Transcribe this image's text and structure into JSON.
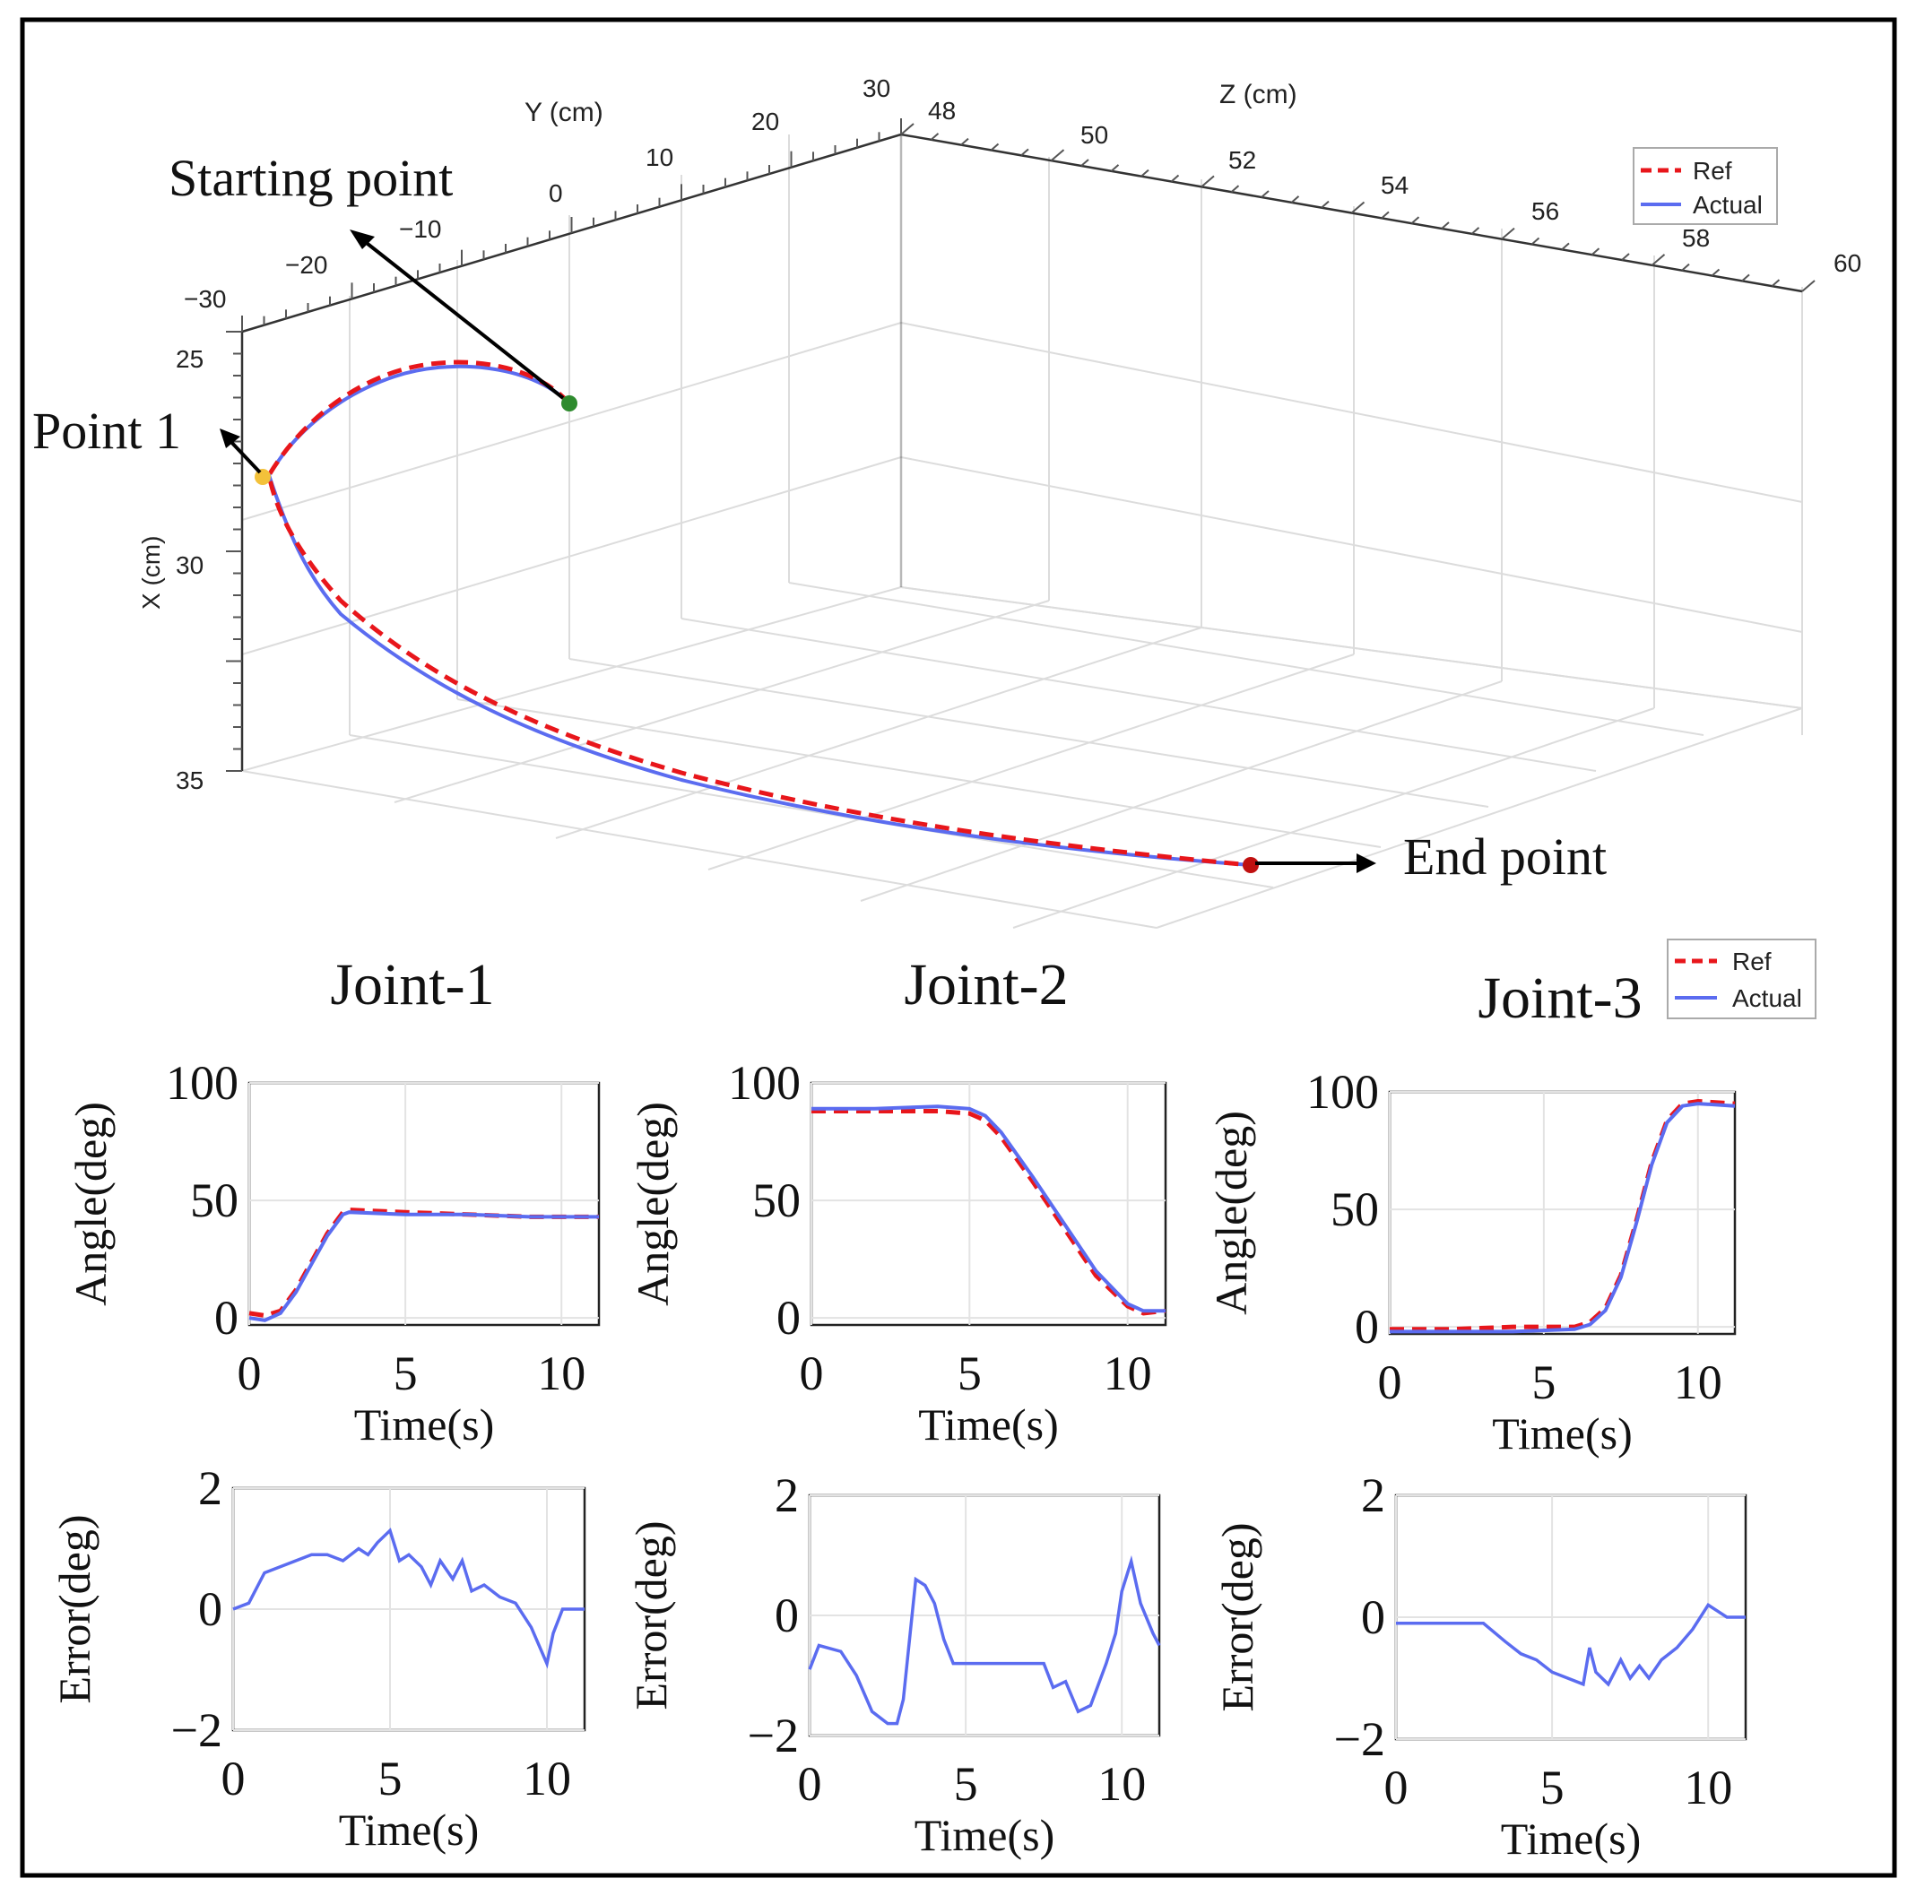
{
  "colors": {
    "ref": "#e8161b",
    "actual": "#5b6cf0",
    "start_marker": "#2e8b2e",
    "point1_marker": "#f3c13a",
    "end_marker": "#c01010"
  },
  "top_plot": {
    "y_axis": {
      "label": "Y (cm)",
      "ticks": [
        "−30",
        "−20",
        "−10",
        "0",
        "10",
        "20",
        "30"
      ]
    },
    "z_axis": {
      "label": "Z (cm)",
      "ticks": [
        "48",
        "50",
        "52",
        "54",
        "56",
        "58",
        "60"
      ]
    },
    "x_axis": {
      "label": "X (cm)",
      "ticks": [
        "25",
        "30",
        "35"
      ]
    },
    "legend": {
      "ref": "Ref",
      "actual": "Actual"
    },
    "annotations": {
      "start": "Starting point",
      "point1": "Point 1",
      "end": "End point"
    }
  },
  "legend2": {
    "ref": "Ref",
    "actual": "Actual"
  },
  "chart_data": [
    {
      "type": "line",
      "title": "Joint-1",
      "xlabel": "Time(s)",
      "ylabel": "Angle(deg)",
      "xlim": [
        0,
        11.2
      ],
      "ylim": [
        -3,
        100
      ],
      "xticks": [
        "0",
        "5",
        "10"
      ],
      "yticks": [
        "0",
        "50",
        "100"
      ],
      "series": [
        {
          "name": "Ref",
          "x": [
            0,
            0.5,
            1,
            1.5,
            2,
            2.5,
            3,
            3.2,
            5,
            7,
            9,
            11.2
          ],
          "y": [
            2,
            1,
            3,
            12,
            24,
            36,
            45,
            46,
            45,
            44,
            43,
            43
          ]
        },
        {
          "name": "Actual",
          "x": [
            0,
            0.5,
            1,
            1.5,
            2,
            2.5,
            3,
            3.2,
            5,
            7,
            9,
            11.2
          ],
          "y": [
            0,
            -1,
            2,
            11,
            23,
            35,
            44,
            45,
            44,
            44,
            43,
            43
          ]
        }
      ]
    },
    {
      "type": "line",
      "title": "Joint-2",
      "xlabel": "Time(s)",
      "ylabel": "Angle(deg)",
      "xlim": [
        0,
        11.2
      ],
      "ylim": [
        -3,
        100
      ],
      "xticks": [
        "0",
        "5",
        "10"
      ],
      "yticks": [
        "0",
        "50",
        "100"
      ],
      "series": [
        {
          "name": "Ref",
          "x": [
            0,
            2,
            4,
            5,
            5.5,
            6,
            7,
            8,
            9,
            10,
            10.5,
            11.2
          ],
          "y": [
            88,
            88,
            88,
            87,
            84,
            77,
            58,
            38,
            18,
            5,
            2,
            3
          ]
        },
        {
          "name": "Actual",
          "x": [
            0,
            2,
            4,
            5,
            5.5,
            6,
            7,
            8,
            9,
            10,
            10.5,
            11.2
          ],
          "y": [
            89,
            89,
            90,
            89,
            86,
            79,
            60,
            40,
            20,
            6,
            3,
            3
          ]
        }
      ]
    },
    {
      "type": "line",
      "title": "Joint-3",
      "xlabel": "Time(s)",
      "ylabel": "Angle(deg)",
      "xlim": [
        0,
        11.2
      ],
      "ylim": [
        -3,
        100
      ],
      "xticks": [
        "0",
        "5",
        "10"
      ],
      "yticks": [
        "0",
        "50",
        "100"
      ],
      "series": [
        {
          "name": "Ref",
          "x": [
            0,
            2,
            4,
            6,
            6.5,
            7,
            7.5,
            8,
            8.5,
            9,
            9.5,
            10,
            11.2
          ],
          "y": [
            -1,
            -1,
            0,
            0,
            2,
            8,
            22,
            45,
            70,
            88,
            95,
            96,
            95
          ]
        },
        {
          "name": "Actual",
          "x": [
            0,
            2,
            4,
            6,
            6.5,
            7,
            7.5,
            8,
            8.5,
            9,
            9.5,
            10,
            11.2
          ],
          "y": [
            -2,
            -2,
            -2,
            -1,
            1,
            7,
            21,
            44,
            69,
            87,
            94,
            95,
            94
          ]
        }
      ]
    },
    {
      "type": "line",
      "title": "",
      "xlabel": "Time(s)",
      "ylabel": "Error(deg)",
      "xlim": [
        0,
        11.2
      ],
      "ylim": [
        -2,
        2
      ],
      "xticks": [
        "0",
        "5",
        "10"
      ],
      "yticks": [
        "−2",
        "0",
        "2"
      ],
      "series": [
        {
          "name": "Actual",
          "x": [
            0,
            0.5,
            1,
            1.5,
            2,
            2.5,
            3,
            3.5,
            4,
            4.3,
            4.6,
            5,
            5.3,
            5.6,
            6,
            6.3,
            6.6,
            7,
            7.3,
            7.6,
            8,
            8.5,
            9,
            9.5,
            10,
            10.2,
            10.5,
            11.2
          ],
          "y": [
            0,
            0.1,
            0.6,
            0.7,
            0.8,
            0.9,
            0.9,
            0.8,
            1.0,
            0.9,
            1.1,
            1.3,
            0.8,
            0.9,
            0.7,
            0.4,
            0.8,
            0.5,
            0.8,
            0.3,
            0.4,
            0.2,
            0.1,
            -0.3,
            -0.9,
            -0.4,
            0,
            0
          ]
        }
      ]
    },
    {
      "type": "line",
      "title": "",
      "xlabel": "Time(s)",
      "ylabel": "Error(deg)",
      "xlim": [
        0,
        11.2
      ],
      "ylim": [
        -2,
        2
      ],
      "xticks": [
        "0",
        "5",
        "10"
      ],
      "yticks": [
        "−2",
        "0",
        "2"
      ],
      "series": [
        {
          "name": "Actual",
          "x": [
            0,
            0.3,
            1,
            1.5,
            2,
            2.5,
            2.8,
            3,
            3.4,
            3.7,
            4,
            4.3,
            4.6,
            5,
            6,
            7,
            7.5,
            7.8,
            8.2,
            8.6,
            9,
            9.5,
            9.8,
            10,
            10.3,
            10.6,
            11,
            11.2
          ],
          "y": [
            -0.9,
            -0.5,
            -0.6,
            -1.0,
            -1.6,
            -1.8,
            -1.8,
            -1.4,
            0.6,
            0.5,
            0.2,
            -0.4,
            -0.8,
            -0.8,
            -0.8,
            -0.8,
            -0.8,
            -1.2,
            -1.1,
            -1.6,
            -1.5,
            -0.8,
            -0.3,
            0.4,
            0.9,
            0.2,
            -0.3,
            -0.5
          ]
        }
      ]
    },
    {
      "type": "line",
      "title": "",
      "xlabel": "Time(s)",
      "ylabel": "Error(deg)",
      "xlim": [
        0,
        11.2
      ],
      "ylim": [
        -2,
        2
      ],
      "xticks": [
        "0",
        "5",
        "10"
      ],
      "yticks": [
        "−2",
        "0",
        "2"
      ],
      "series": [
        {
          "name": "Actual",
          "x": [
            0,
            1,
            2,
            2.8,
            3.5,
            4,
            4.5,
            5,
            5.5,
            6,
            6.2,
            6.4,
            6.6,
            6.8,
            7,
            7.2,
            7.5,
            7.8,
            8.1,
            8.5,
            9,
            9.5,
            10,
            10.3,
            10.6,
            11.2
          ],
          "y": [
            -0.1,
            -0.1,
            -0.1,
            -0.1,
            -0.4,
            -0.6,
            -0.7,
            -0.9,
            -1.0,
            -1.1,
            -0.5,
            -0.9,
            -1.0,
            -1.1,
            -0.9,
            -0.7,
            -1.0,
            -0.8,
            -1.0,
            -0.7,
            -0.5,
            -0.2,
            0.2,
            0.1,
            0.0,
            0.0
          ]
        }
      ]
    }
  ]
}
